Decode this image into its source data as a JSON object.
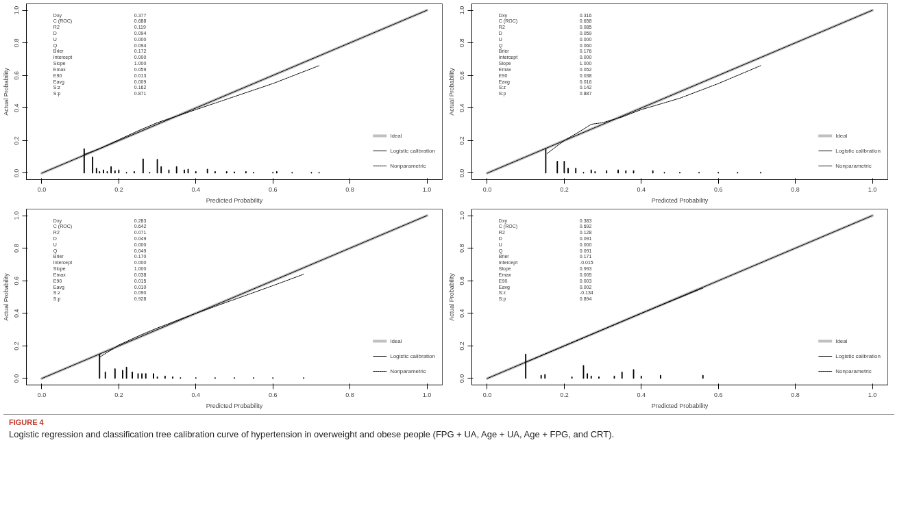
{
  "chart_data": [
    {
      "type": "line",
      "xlabel": "Predicted Probability",
      "ylabel": "Actual Probability",
      "xlim": [
        -0.04,
        1.04
      ],
      "ylim": [
        -0.04,
        1.04
      ],
      "xticks": [
        {
          "value": 0,
          "label": "0.0"
        },
        {
          "value": 0.2,
          "label": "0.2"
        },
        {
          "value": 0.4,
          "label": "0.4"
        },
        {
          "value": 0.6,
          "label": "0.6"
        },
        {
          "value": 0.8,
          "label": "0.8"
        },
        {
          "value": 1,
          "label": "1.0"
        }
      ],
      "yticks": [
        {
          "value": 0,
          "label": "0.0"
        },
        {
          "value": 0.2,
          "label": "0.2"
        },
        {
          "value": 0.4,
          "label": "0.4"
        },
        {
          "value": 0.6,
          "label": "0.6"
        },
        {
          "value": 0.8,
          "label": "0.8"
        },
        {
          "value": 1,
          "label": "1.0"
        }
      ],
      "grid": false,
      "legend": "bottom right",
      "annotations": [
        "Dxy",
        "0.377",
        "C (ROC)",
        "0.688",
        "R2",
        "0.119",
        "D",
        "0.094",
        "U",
        "0.000",
        "Q",
        "0.094",
        "Brier",
        "0.172",
        "Intercept",
        "0.000",
        "Slope",
        "1.000",
        "Emax",
        "0.059",
        "E90",
        "0.013",
        "Eavg",
        "0.009",
        "S:z",
        "0.162",
        "S:p",
        "0.871"
      ],
      "series": [
        {
          "name": "Ideal",
          "color": "#c0c0c0",
          "line_style": "solid",
          "x": [
            0,
            1
          ],
          "values": [
            0,
            1
          ]
        },
        {
          "name": "Logistic calibration",
          "color": "#000000",
          "line_style": "solid",
          "x": [
            0,
            1
          ],
          "values": [
            0,
            1
          ]
        },
        {
          "name": "Nonparametric",
          "color": "#000000",
          "line_style": "dotted",
          "x": [
            0.11,
            0.15,
            0.2,
            0.25,
            0.3,
            0.35,
            0.4,
            0.5,
            0.6,
            0.72
          ],
          "values": [
            0.115,
            0.15,
            0.205,
            0.26,
            0.31,
            0.35,
            0.39,
            0.47,
            0.55,
            0.66
          ]
        },
        {
          "type": "bar",
          "color": "#000000",
          "x": [
            0.11,
            0.132,
            0.142,
            0.15,
            0.16,
            0.17,
            0.18,
            0.19,
            0.2,
            0.22,
            0.24,
            0.263,
            0.28,
            0.3,
            0.31,
            0.33,
            0.35,
            0.37,
            0.38,
            0.4,
            0.43,
            0.45,
            0.48,
            0.5,
            0.53,
            0.55,
            0.6,
            0.61,
            0.65,
            0.7,
            0.72
          ],
          "values": [
            0.15,
            0.1,
            0.03,
            0.01,
            0.02,
            0.01,
            0.04,
            0.015,
            0.02,
            0.005,
            0.01,
            0.088,
            0.005,
            0.085,
            0.04,
            0.02,
            0.04,
            0.02,
            0.025,
            0.01,
            0.025,
            0.01,
            0.01,
            0.008,
            0.01,
            0.005,
            0.005,
            0.01,
            0.005,
            0.005,
            0.005
          ]
        }
      ]
    },
    {
      "type": "line",
      "xlabel": "Predicted Probability",
      "ylabel": "Actual Probability",
      "xlim": [
        -0.04,
        1.04
      ],
      "ylim": [
        -0.04,
        1.04
      ],
      "xticks": [
        {
          "value": 0,
          "label": "0.0"
        },
        {
          "value": 0.2,
          "label": "0.2"
        },
        {
          "value": 0.4,
          "label": "0.4"
        },
        {
          "value": 0.6,
          "label": "0.6"
        },
        {
          "value": 0.8,
          "label": "0.8"
        },
        {
          "value": 1,
          "label": "1.0"
        }
      ],
      "yticks": [
        {
          "value": 0,
          "label": "0.0"
        },
        {
          "value": 0.2,
          "label": "0.2"
        },
        {
          "value": 0.4,
          "label": "0.4"
        },
        {
          "value": 0.6,
          "label": "0.6"
        },
        {
          "value": 0.8,
          "label": "0.8"
        },
        {
          "value": 1,
          "label": "1.0"
        }
      ],
      "grid": false,
      "legend": "bottom right",
      "annotations": [
        "Dxy",
        "0.316",
        "C (ROC)",
        "0.658",
        "R2",
        "0.085",
        "D",
        "0.059",
        "U",
        "0.000",
        "Q",
        "0.060",
        "Brier",
        "0.176",
        "Intercept",
        "0.000",
        "Slope",
        "1.000",
        "Emax",
        "0.052",
        "E90",
        "0.038",
        "Eavg",
        "0.016",
        "S:z",
        "0.142",
        "S:p",
        "0.887"
      ],
      "series": [
        {
          "name": "Ideal",
          "color": "#c0c0c0",
          "line_style": "solid",
          "x": [
            0,
            1
          ],
          "values": [
            0,
            1
          ]
        },
        {
          "name": "Logistic calibration",
          "color": "#000000",
          "line_style": "solid",
          "x": [
            0,
            1
          ],
          "values": [
            0,
            1
          ]
        },
        {
          "name": "Nonparametric",
          "color": "#000000",
          "line_style": "dotted",
          "x": [
            0.155,
            0.2,
            0.25,
            0.27,
            0.3,
            0.35,
            0.4,
            0.5,
            0.6,
            0.71
          ],
          "values": [
            0.12,
            0.2,
            0.27,
            0.3,
            0.31,
            0.345,
            0.39,
            0.46,
            0.55,
            0.66
          ]
        },
        {
          "type": "bar",
          "color": "#000000",
          "x": [
            0.152,
            0.182,
            0.2,
            0.21,
            0.23,
            0.25,
            0.27,
            0.28,
            0.31,
            0.34,
            0.36,
            0.38,
            0.43,
            0.46,
            0.5,
            0.55,
            0.6,
            0.65,
            0.71
          ],
          "values": [
            0.15,
            0.073,
            0.073,
            0.03,
            0.03,
            0.005,
            0.02,
            0.01,
            0.015,
            0.02,
            0.015,
            0.015,
            0.015,
            0.005,
            0.005,
            0.005,
            0.005,
            0.005,
            0.005
          ]
        }
      ]
    },
    {
      "type": "line",
      "xlabel": "Predicted Probability",
      "ylabel": "Actual Probability",
      "xlim": [
        -0.04,
        1.04
      ],
      "ylim": [
        -0.04,
        1.04
      ],
      "xticks": [
        {
          "value": 0,
          "label": "0.0"
        },
        {
          "value": 0.2,
          "label": "0.2"
        },
        {
          "value": 0.4,
          "label": "0.4"
        },
        {
          "value": 0.6,
          "label": "0.6"
        },
        {
          "value": 0.8,
          "label": "0.8"
        },
        {
          "value": 1,
          "label": "1.0"
        }
      ],
      "yticks": [
        {
          "value": 0,
          "label": "0.0"
        },
        {
          "value": 0.2,
          "label": "0.2"
        },
        {
          "value": 0.4,
          "label": "0.4"
        },
        {
          "value": 0.6,
          "label": "0.6"
        },
        {
          "value": 0.8,
          "label": "0.8"
        },
        {
          "value": 1,
          "label": "1.0"
        }
      ],
      "grid": false,
      "legend": "bottom right",
      "annotations": [
        "Dxy",
        "0.283",
        "C (ROC)",
        "0.642",
        "R2",
        "0.071",
        "D",
        "0.049",
        "U",
        "0.000",
        "Q",
        "0.049",
        "Brier",
        "0.170",
        "Intercept",
        "0.000",
        "Slope",
        "1.000",
        "Emax",
        "0.038",
        "E90",
        "0.015",
        "Eavg",
        "0.010",
        "S:z",
        "0.090",
        "S:p",
        "0.928"
      ],
      "series": [
        {
          "name": "Ideal",
          "color": "#c0c0c0",
          "line_style": "solid",
          "x": [
            0,
            1
          ],
          "values": [
            0,
            1
          ]
        },
        {
          "name": "Logistic calibration",
          "color": "#000000",
          "line_style": "solid",
          "x": [
            0,
            1
          ],
          "values": [
            0,
            1
          ]
        },
        {
          "name": "Nonparametric",
          "color": "#000000",
          "line_style": "dotted",
          "x": [
            0.15,
            0.2,
            0.25,
            0.3,
            0.4,
            0.5,
            0.6,
            0.68
          ],
          "values": [
            0.13,
            0.205,
            0.26,
            0.31,
            0.4,
            0.485,
            0.57,
            0.64
          ]
        },
        {
          "type": "bar",
          "color": "#000000",
          "x": [
            0.15,
            0.165,
            0.19,
            0.21,
            0.22,
            0.235,
            0.25,
            0.26,
            0.27,
            0.29,
            0.3,
            0.32,
            0.34,
            0.36,
            0.4,
            0.45,
            0.5,
            0.55,
            0.6,
            0.68
          ],
          "values": [
            0.15,
            0.04,
            0.06,
            0.05,
            0.07,
            0.04,
            0.03,
            0.03,
            0.03,
            0.03,
            0.01,
            0.015,
            0.01,
            0.005,
            0.005,
            0.005,
            0.005,
            0.005,
            0.005,
            0.005
          ]
        }
      ]
    },
    {
      "type": "line",
      "xlabel": "Predicted Probability",
      "ylabel": "Actual Probability",
      "xlim": [
        -0.04,
        1.04
      ],
      "ylim": [
        -0.04,
        1.04
      ],
      "xticks": [
        {
          "value": 0,
          "label": "0.0"
        },
        {
          "value": 0.2,
          "label": "0.2"
        },
        {
          "value": 0.4,
          "label": "0.4"
        },
        {
          "value": 0.6,
          "label": "0.6"
        },
        {
          "value": 0.8,
          "label": "0.8"
        },
        {
          "value": 1,
          "label": "1.0"
        }
      ],
      "yticks": [
        {
          "value": 0,
          "label": "0.0"
        },
        {
          "value": 0.2,
          "label": "0.2"
        },
        {
          "value": 0.4,
          "label": "0.4"
        },
        {
          "value": 0.6,
          "label": "0.6"
        },
        {
          "value": 0.8,
          "label": "0.8"
        },
        {
          "value": 1,
          "label": "1.0"
        }
      ],
      "grid": false,
      "legend": "bottom right",
      "annotations": [
        "Dxy",
        "0.383",
        "C (ROC)",
        "0.692",
        "R2",
        "0.128",
        "D",
        "0.091",
        "U",
        "0.000",
        "Q",
        "0.091",
        "Brier",
        "0.171",
        "Intercept",
        "-0.015",
        "Slope",
        "0.993",
        "Emax",
        "0.005",
        "E90",
        "0.003",
        "Eavg",
        "0.002",
        "S:z",
        "-0.134",
        "S:p",
        "0.894"
      ],
      "series": [
        {
          "name": "Ideal",
          "color": "#c0c0c0",
          "line_style": "solid",
          "x": [
            0,
            1
          ],
          "values": [
            0,
            1
          ]
        },
        {
          "name": "Logistic calibration",
          "color": "#000000",
          "line_style": "solid",
          "x": [
            0,
            1
          ],
          "values": [
            0,
            1
          ]
        },
        {
          "name": "Nonparametric",
          "color": "#000000",
          "line_style": "dotted",
          "x": [
            0.1,
            0.25,
            0.4,
            0.56
          ],
          "values": [
            0.1,
            0.25,
            0.4,
            0.555
          ]
        },
        {
          "type": "bar",
          "color": "#000000",
          "x": [
            0.1,
            0.14,
            0.15,
            0.22,
            0.25,
            0.26,
            0.27,
            0.29,
            0.33,
            0.35,
            0.38,
            0.4,
            0.45,
            0.56
          ],
          "values": [
            0.15,
            0.02,
            0.025,
            0.01,
            0.08,
            0.03,
            0.015,
            0.01,
            0.015,
            0.04,
            0.055,
            0.015,
            0.02,
            0.02
          ]
        }
      ]
    },
    {
      "type": "other",
      "annotations": [
        "FIGURE 4",
        "Logistic regression and classification tree calibration curve of hypertension in overweight and obese people (FPG + UA, Age + UA, Age + FPG, and CRT)."
      ]
    }
  ]
}
